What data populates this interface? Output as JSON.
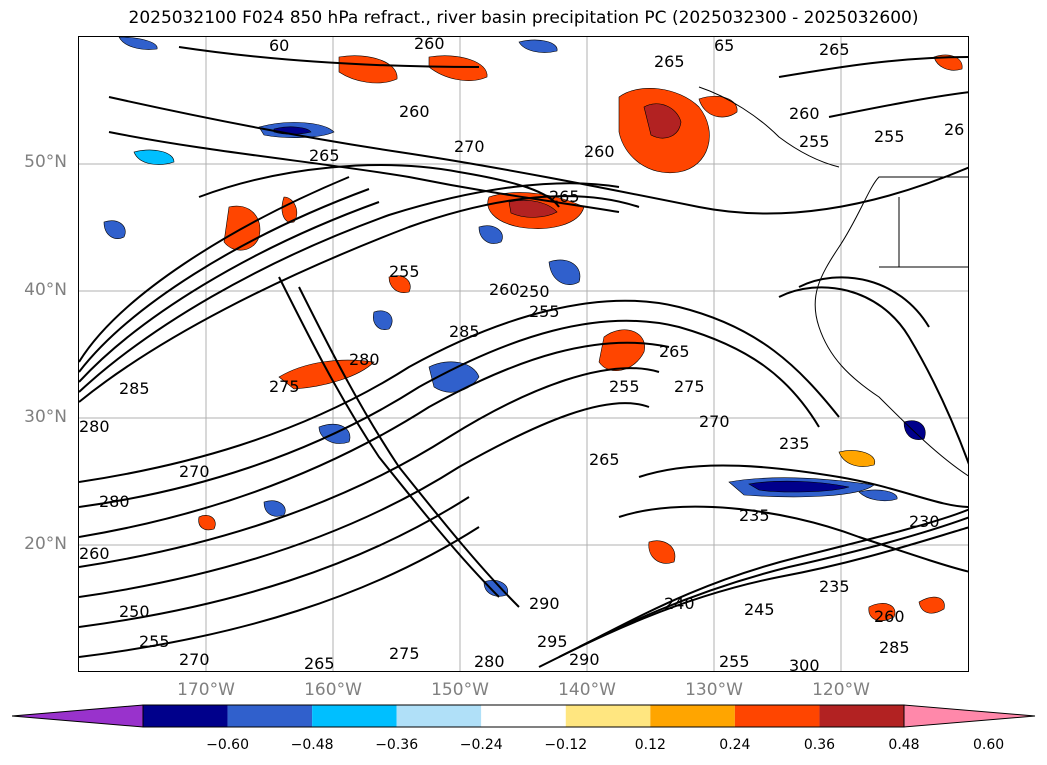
{
  "title": "2025032100 F024 850 hPa refract., river basin precipitation PC (2025032300 - 2025032600)",
  "lat_labels": [
    "50°N",
    "40°N",
    "30°N",
    "20°N"
  ],
  "lon_labels": [
    "170°W",
    "160°W",
    "150°W",
    "140°W",
    "130°W",
    "120°W"
  ],
  "contour_labels": [
    "260",
    "265",
    "260",
    "270",
    "265",
    "255",
    "260",
    "255",
    "285",
    "280",
    "275",
    "285",
    "280",
    "270",
    "265",
    "255",
    "275",
    "270",
    "235",
    "265",
    "235",
    "230",
    "240",
    "235",
    "245",
    "260",
    "250",
    "255",
    "290",
    "295",
    "290",
    "280",
    "275",
    "270",
    "280",
    "265",
    "260",
    "255",
    "300",
    "285",
    "60",
    "65",
    "265",
    "265",
    "260",
    "255",
    "26",
    "260",
    "255",
    "250"
  ],
  "colorbar": {
    "ticks": [
      "−0.60",
      "−0.48",
      "−0.36",
      "−0.24",
      "−0.12",
      "0.12",
      "0.24",
      "0.36",
      "0.48",
      "0.60"
    ],
    "colors": [
      "#9932cc",
      "#00008b",
      "#3060cc",
      "#00bfff",
      "#b0e0f8",
      "#ffffff",
      "#ffe680",
      "#ffa500",
      "#ff4500",
      "#b22222",
      "#ff88aa"
    ]
  },
  "map": {
    "projection": "PlateCarree",
    "lat_range": [
      10,
      60
    ],
    "lon_range": [
      -180,
      -110
    ],
    "gridlines": true,
    "field_1": "850 hPa refractivity (contours)",
    "field_2": "river basin precipitation PC (shaded)"
  }
}
